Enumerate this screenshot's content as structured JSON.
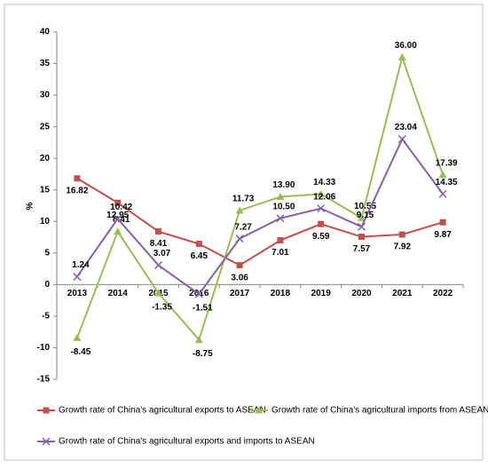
{
  "chart_data": {
    "type": "line",
    "y_label": "%",
    "categories": [
      "2013",
      "2014",
      "2015",
      "2016",
      "2017",
      "2018",
      "2019",
      "2020",
      "2021",
      "2022"
    ],
    "ylim": [
      -15,
      40
    ],
    "yticks": [
      -15,
      -10,
      -5,
      0,
      5,
      10,
      15,
      20,
      25,
      30,
      35,
      40
    ],
    "series": [
      {
        "name": "Growth rate of China's agricultural exports to ASEAN",
        "color": "#c0504d",
        "marker": "square",
        "values": [
          16.82,
          12.95,
          8.41,
          6.45,
          3.06,
          7.01,
          9.59,
          7.57,
          7.92,
          9.87
        ],
        "value_labels": [
          "16.82",
          "12.95",
          "8.41",
          "6.45",
          "3.06",
          "7.01",
          "9.59",
          "7.57",
          "7.92",
          "9.87"
        ]
      },
      {
        "name": "Growth rate of China's agricultural imports from ASEAN",
        "color": "#9bbb59",
        "marker": "triangle",
        "values": [
          -8.45,
          8.41,
          -1.35,
          -8.75,
          11.73,
          13.9,
          14.33,
          10.55,
          36.0,
          17.39
        ],
        "value_labels": [
          "-8.45",
          "8.41",
          "-1.35",
          "-8.75",
          "11.73",
          "13.90",
          "14.33",
          "10.55",
          "36.00",
          "17.39"
        ]
      },
      {
        "name": "Growth rate of China's agricultural exports and imports to  ASEAN",
        "color": "#8064a2",
        "marker": "x",
        "values": [
          1.24,
          10.42,
          3.07,
          -1.51,
          7.27,
          10.5,
          12.06,
          9.15,
          23.04,
          14.35
        ],
        "value_labels": [
          "1.24",
          "10.42",
          "3.07",
          "-1.51",
          "7.27",
          "10.50",
          "12.06",
          "9.15",
          "23.04",
          "14.35"
        ]
      }
    ]
  }
}
